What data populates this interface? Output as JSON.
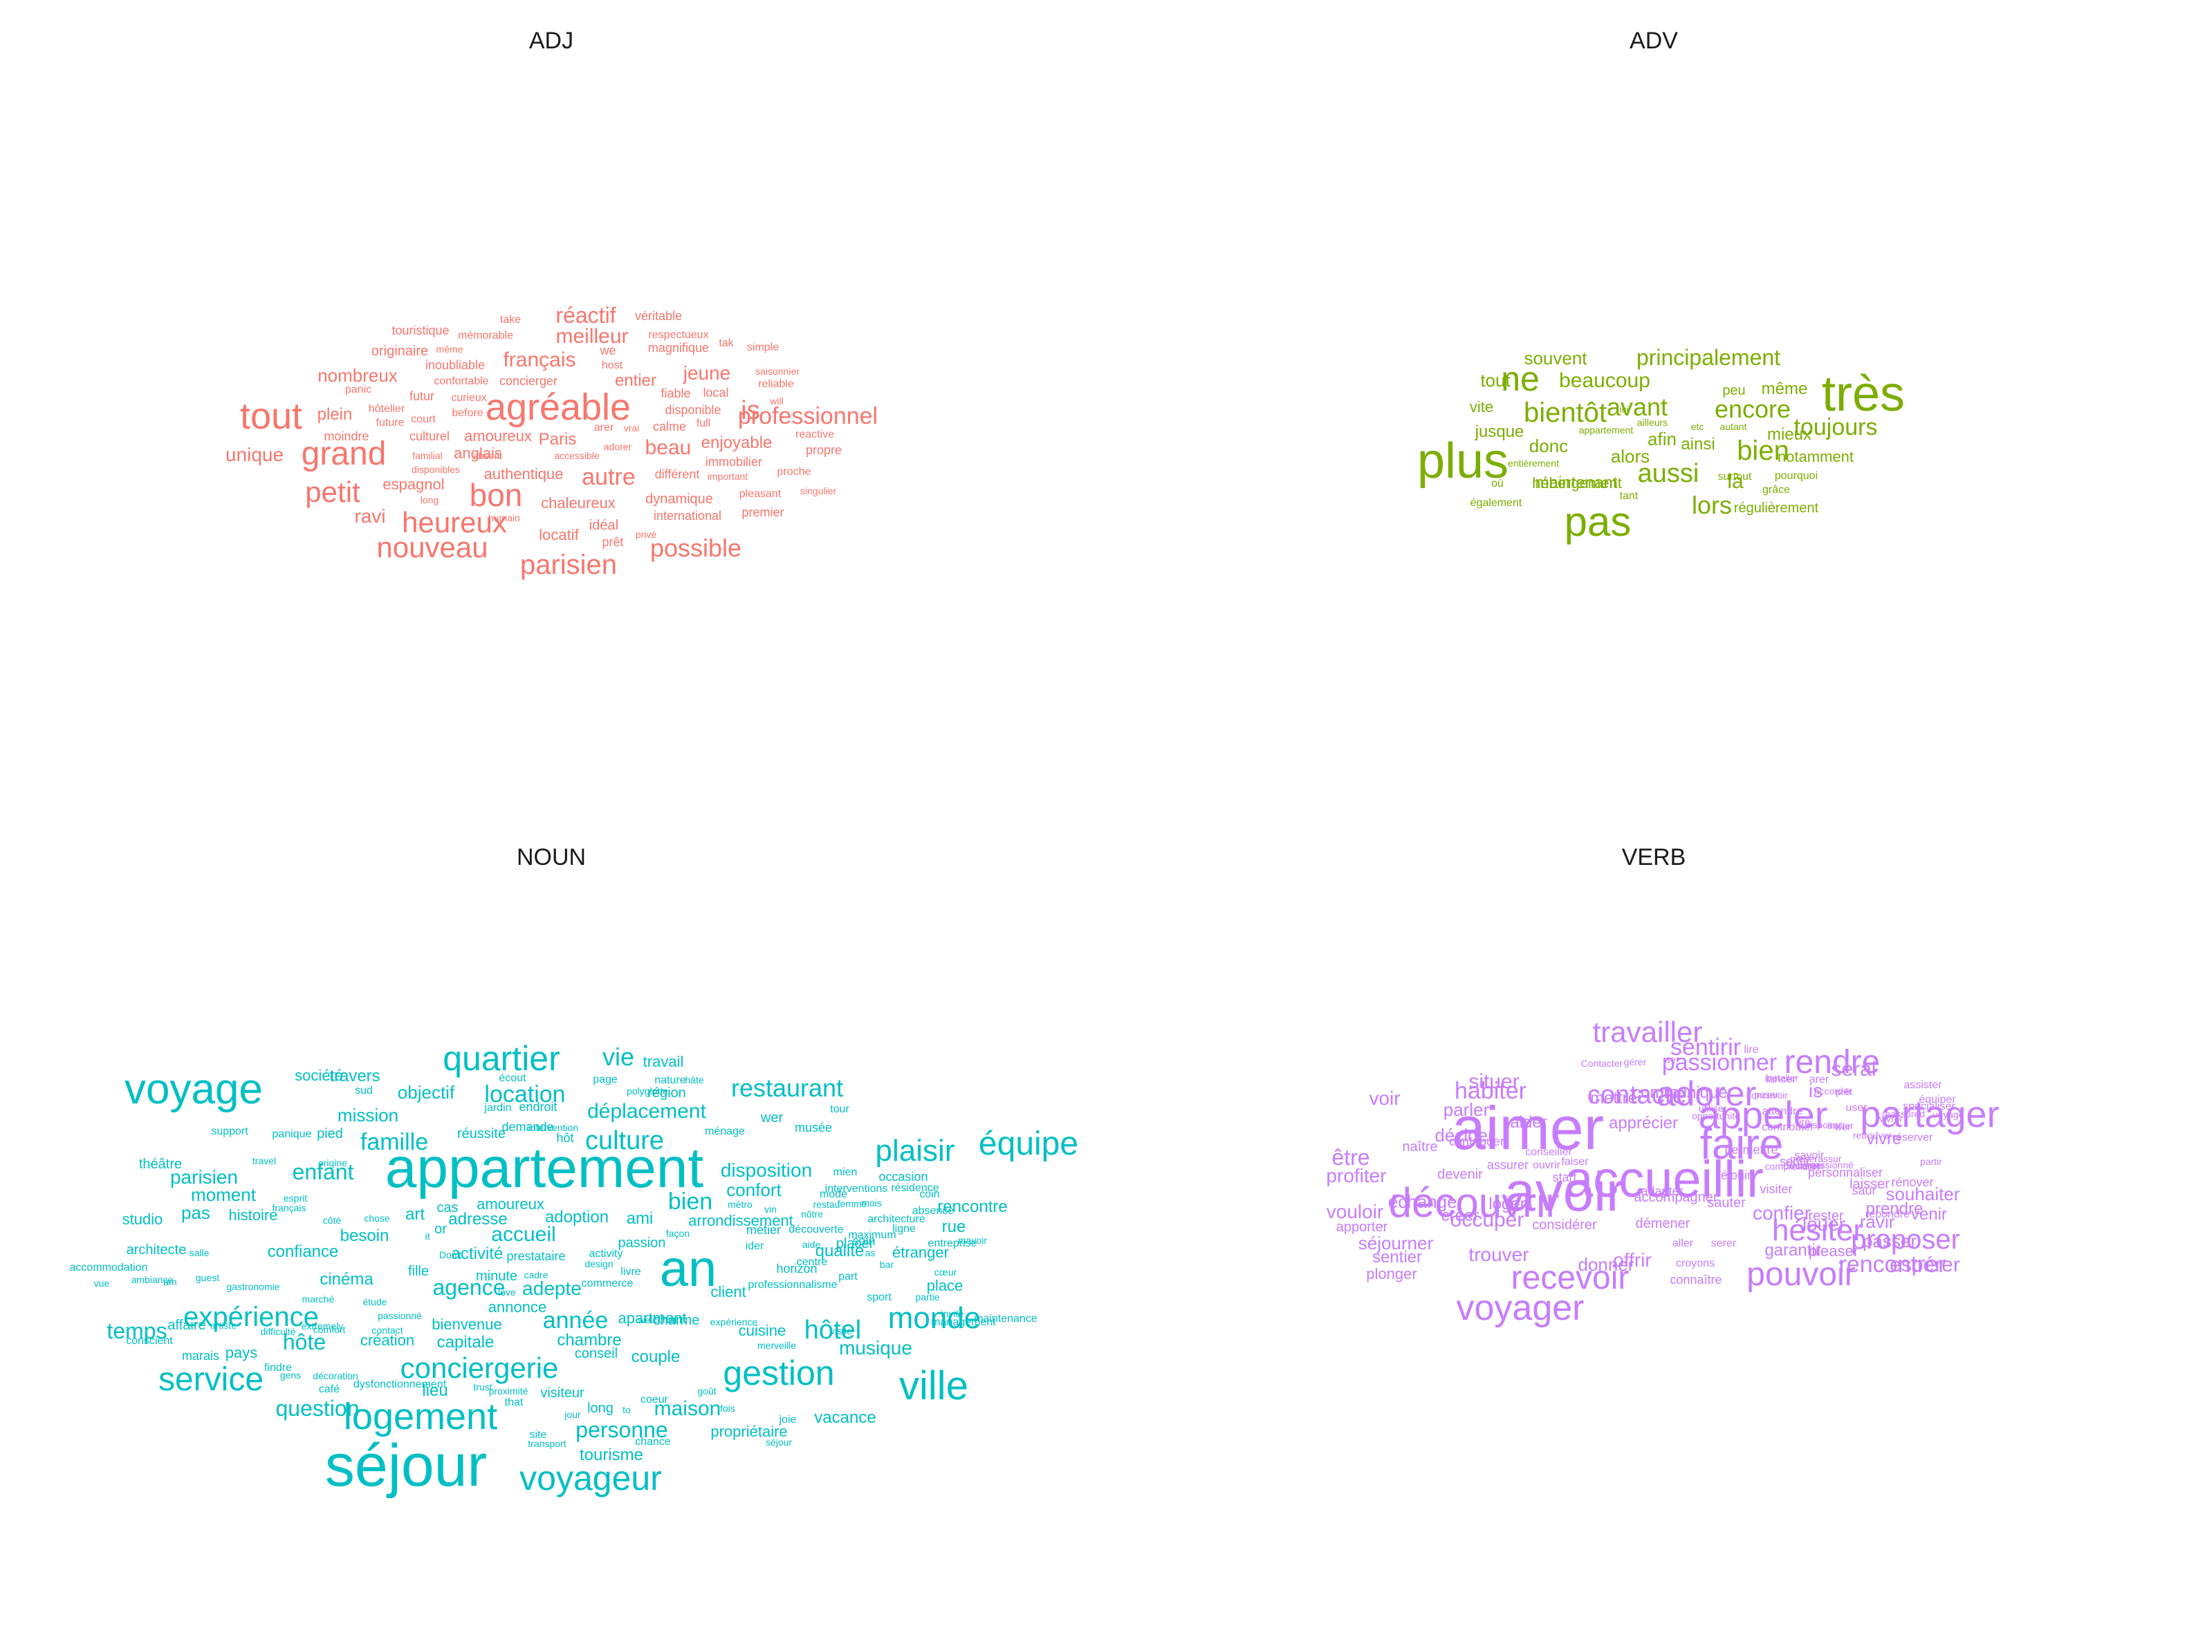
{
  "chart_data": [
    {
      "type": "wordcloud",
      "title": "ADJ",
      "color": "#F8766D",
      "words": [
        "agréable",
        "tout",
        "grand",
        "petit",
        "bon",
        "heureux",
        "nouveau",
        "parisien",
        "possible",
        "professionnel",
        "réactif",
        "meilleur",
        "français",
        "jeune",
        "is",
        "autre",
        "beau",
        "unique",
        "nombreux",
        "plein",
        "entier",
        "Paris",
        "enjoyable",
        "anglais",
        "authentique",
        "amoureux",
        "chaleureux",
        "ravi",
        "espagnol",
        "locatif",
        "dynamique",
        "idéal",
        "touristique",
        "mémorable",
        "take",
        "véritable",
        "respectueux",
        "originaire",
        "même",
        "magnifique",
        "tak",
        "simple",
        "inoubliable",
        "we",
        "host",
        "saisonnier",
        "panic",
        "futur",
        "confortable",
        "concierger",
        "fiable",
        "local",
        "reliable",
        "hôtelier",
        "curieux",
        "disponible",
        "will",
        "future",
        "court",
        "before",
        "full",
        "calme",
        "vrai",
        "arer",
        "moindre",
        "culturel",
        "familial",
        "absent",
        "accessible",
        "adorer",
        "immobilier",
        "reactive",
        "propre",
        "disponibles",
        "différent",
        "important",
        "proche",
        "long",
        "pleasant",
        "singulier",
        "humain",
        "international",
        "premier",
        "prêt",
        "privé"
      ]
    },
    {
      "type": "wordcloud",
      "title": "ADV",
      "color": "#7CAE00",
      "words": [
        "très",
        "plus",
        "pas",
        "ne",
        "bientôt",
        "avant",
        "encore",
        "toujours",
        "aussi",
        "bien",
        "lors",
        "souvent",
        "principalement",
        "beaucoup",
        "tout",
        "même",
        "vite",
        "peu",
        "ici",
        "ailleurs",
        "etc",
        "autant",
        "mieux",
        "jusque",
        "appartement",
        "afin",
        "ainsi",
        "donc",
        "alors",
        "notamment",
        "entièrement",
        "là",
        "maintenant",
        "surtout",
        "pourquoi",
        "grâce",
        "où",
        "hébergement",
        "tant",
        "régulièrement",
        "également"
      ]
    },
    {
      "type": "wordcloud",
      "title": "NOUN",
      "color": "#00BFC4",
      "words": [
        "appartement",
        "séjour",
        "an",
        "voyage",
        "quartier",
        "logement",
        "gestion",
        "ville",
        "voyageur",
        "service",
        "conciergerie",
        "équipe",
        "plaisir",
        "monde",
        "expérience",
        "hôtel",
        "location",
        "culture",
        "restaurant",
        "vie",
        "famille",
        "enfant",
        "travail",
        "année",
        "agence",
        "bien",
        "personne",
        "maison",
        "temps",
        "hôte",
        "question",
        "déplacement",
        "disposition",
        "accueil",
        "adepte",
        "musique",
        "parisien",
        "moment",
        "travers",
        "objectif",
        "mission",
        "confort",
        "rue",
        "rencontre",
        "art",
        "amoureux",
        "adresse",
        "adoption",
        "ami",
        "arrondissement",
        "activité",
        "confiance",
        "pays",
        "capitale",
        "chambre",
        "couple",
        "tourisme",
        "vacance",
        "propriétaire",
        "studio",
        "histoire",
        "besoin",
        "cinéma",
        "création",
        "lieu",
        "bienvenue",
        "annonce",
        "conseil",
        "long",
        "soin",
        "client",
        "cuisine",
        "apartment",
        "charme",
        "place",
        "étranger",
        "qualité",
        "région",
        "nature",
        "écout",
        "société",
        "sud",
        "jardin",
        "endroit",
        "page",
        "polyglotte",
        "hâte",
        "réussite",
        "demande",
        "hôt",
        "intervention",
        "ménage",
        "wer",
        "musée",
        "tour",
        "support",
        "panique",
        "pied",
        "pas",
        "cas",
        "or",
        "chose",
        "côté",
        "esprit",
        "français",
        "théâtre",
        "travel",
        "origine",
        "mien",
        "mode",
        "occasion",
        "résidence",
        "interventions",
        "restau",
        "femme",
        "mois",
        "métro",
        "vin",
        "nôtre",
        "façon",
        "ligne",
        "maximum",
        "aide",
        "ider",
        "placer",
        "architecture",
        "coin",
        "entreprise",
        "passion",
        "métier",
        "découverte",
        "absence",
        "mavoir",
        "architecte",
        "salle",
        "it",
        "Don't",
        "activity",
        "design",
        "fille",
        "minute",
        "prestataire",
        "professionnalisme",
        "horizon",
        "part",
        "cœur",
        "bar",
        "ambiance",
        "accommodation",
        "vue",
        "am",
        "guest",
        "gastronomie",
        "marché",
        "extremely",
        "étude",
        "passionné",
        "love",
        "cadre",
        "commerce",
        "livre",
        "centre",
        "as",
        "affaire",
        "artiste",
        "difficulté",
        "contact",
        "expérience",
        "merveille",
        "welcome",
        "visite",
        "sport",
        "partie",
        "invité",
        "maintenance",
        "management",
        "conscient",
        "marais",
        "findre",
        "gens",
        "café",
        "comfort",
        "décoration",
        "dysfonctionnement",
        "trust",
        "proximité",
        "that",
        "visiteur",
        "jour",
        "to",
        "coeur",
        "goût",
        "fois",
        "joie",
        "site",
        "chance",
        "transport",
        "séjour"
      ]
    },
    {
      "type": "wordcloud",
      "title": "VERB",
      "color": "#C77CFF",
      "words": [
        "aimer",
        "avoir",
        "accueillir",
        "découvrir",
        "faire",
        "appeler",
        "partager",
        "adorer",
        "rendre",
        "voyager",
        "recevoir",
        "pouvoir",
        "hésiter",
        "proposer",
        "travailler",
        "sentirir",
        "contacter",
        "habiter",
        "passionner",
        "serai",
        "situer",
        "mettre",
        "communiquer",
        "is",
        "voir",
        "parler",
        "aider",
        "être",
        "profiter",
        "décider",
        "apprécier",
        "vivre",
        "rencontrer",
        "espérer",
        "passer",
        "occuper",
        "trouver",
        "offrir",
        "donner",
        "confier",
        "louer",
        "ravir",
        "souhaiter",
        "venir",
        "prendre",
        "pleaser",
        "garantir",
        "rester",
        "laisser",
        "rénover",
        "répondre",
        "spécialiser",
        "vouloir",
        "apporter",
        "loger",
        "créer",
        "échanger",
        "séjourner",
        "sentier",
        "plonger",
        "naître",
        "contribuer",
        "devenir",
        "assurer",
        "conseiller",
        "ouvrir",
        "start",
        "faiser",
        "considérer",
        "démener",
        "accompagner",
        "adapter",
        "aller",
        "croyons",
        "connaître",
        "serer",
        "sauter",
        "réjouir",
        "permettre",
        "visiter",
        "sentir",
        "savoir",
        "passionné",
        "personnaliser",
        "saur",
        "réserver",
        "partir",
        "équiper",
        "voyage",
        "assister",
        "arer",
        "lancer",
        "lire",
        "poser",
        "ser",
        "gérer",
        "Contacter",
        "a",
        "u",
        "installer",
        "comprendre",
        "inventer",
        "disposer",
        "inviter",
        "user",
        "retrouver",
        "vivrer",
        "reassured",
        "prêt",
        "preser",
        "rassur",
        "utiliser",
        "opportunité",
        "concevoir",
        "décorer",
        "attendre",
        "contributer",
        "ire",
        "accorder",
        "wer"
      ]
    }
  ]
}
